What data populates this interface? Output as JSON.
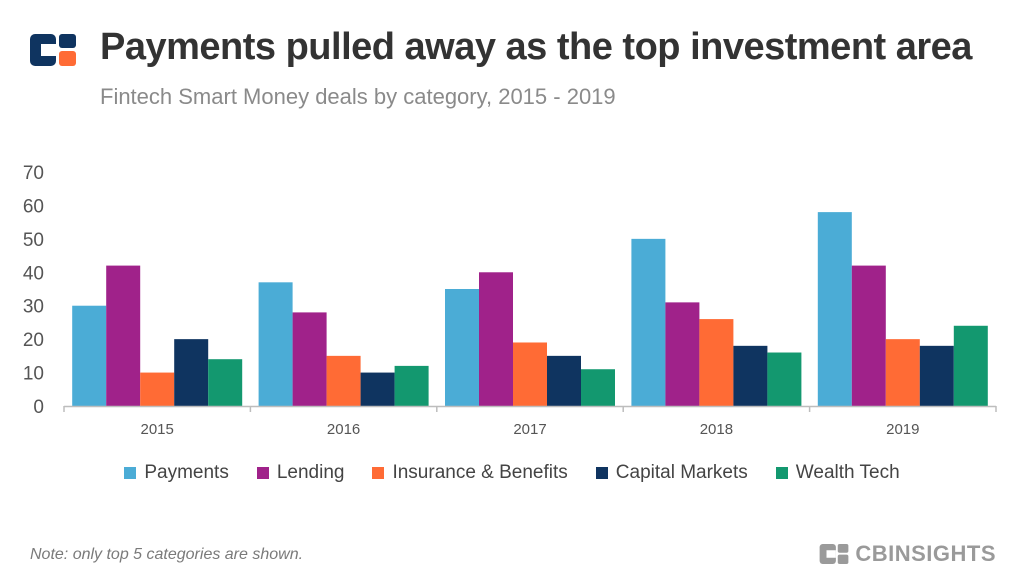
{
  "header": {
    "title": "Payments pulled away as the top investment area",
    "subtitle": "Fintech Smart Money deals by category, 2015 - 2019"
  },
  "footer": {
    "note": "Note: only top 5 categories are shown.",
    "brand": "CBINSIGHTS"
  },
  "colors": {
    "brand_navy": "#0f3460",
    "brand_orange": "#ff6b35",
    "axis": "#bdbdbd",
    "tick_text": "#555555"
  },
  "chart_data": {
    "type": "bar",
    "title": "",
    "xlabel": "",
    "ylabel": "",
    "ylim": [
      0,
      70
    ],
    "yticks": [
      0,
      10,
      20,
      30,
      40,
      50,
      60,
      70
    ],
    "grid": false,
    "legend_position": "bottom",
    "categories": [
      "2015",
      "2016",
      "2017",
      "2018",
      "2019"
    ],
    "series": [
      {
        "name": "Payments",
        "color": "#4bacd6",
        "values": [
          30,
          37,
          35,
          50,
          58
        ]
      },
      {
        "name": "Lending",
        "color": "#a0228a",
        "values": [
          42,
          28,
          40,
          31,
          42
        ]
      },
      {
        "name": "Insurance & Benefits",
        "color": "#ff6b35",
        "values": [
          10,
          15,
          19,
          26,
          20
        ]
      },
      {
        "name": "Capital Markets",
        "color": "#0f3460",
        "values": [
          20,
          10,
          15,
          18,
          18
        ]
      },
      {
        "name": "Wealth Tech",
        "color": "#13986f",
        "values": [
          14,
          12,
          11,
          16,
          24
        ]
      }
    ]
  }
}
